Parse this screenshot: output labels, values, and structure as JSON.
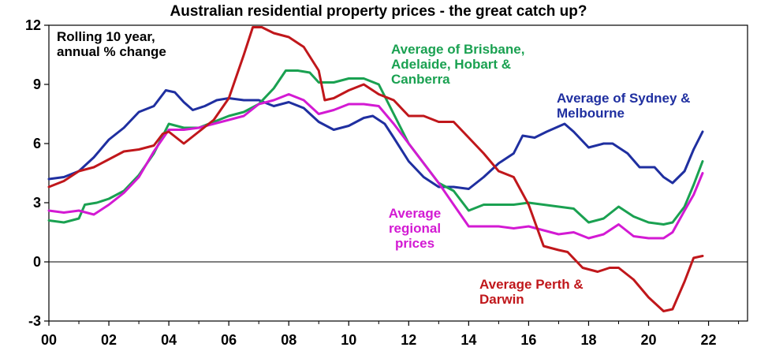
{
  "chart_data": {
    "type": "line",
    "title": "Australian residential property prices - the great catch up?",
    "unit_label": [
      "Rolling 10 year,",
      "annual % change"
    ],
    "xlim": [
      2000,
      2023
    ],
    "ylim": [
      -3,
      12
    ],
    "x_ticks": [
      2000,
      2002,
      2004,
      2006,
      2008,
      2010,
      2012,
      2014,
      2016,
      2018,
      2020,
      2022
    ],
    "x_tick_labels": [
      "00",
      "02",
      "04",
      "06",
      "08",
      "10",
      "12",
      "14",
      "16",
      "18",
      "20",
      "22"
    ],
    "y_ticks": [
      -3,
      0,
      3,
      6,
      9,
      12
    ],
    "y_tick_labels": [
      "-3",
      "0",
      "3",
      "6",
      "9",
      "12"
    ],
    "grid": false,
    "series": [
      {
        "name": "Average of Sydney & Melbourne",
        "label_lines": [
          "Average of Sydney &",
          "Melbourne"
        ],
        "color": "#1f2fa0",
        "points": [
          [
            2000,
            4.2
          ],
          [
            2000.5,
            4.3
          ],
          [
            2001,
            4.6
          ],
          [
            2001.5,
            5.3
          ],
          [
            2002,
            6.2
          ],
          [
            2002.5,
            6.8
          ],
          [
            2003,
            7.6
          ],
          [
            2003.5,
            7.9
          ],
          [
            2003.9,
            8.7
          ],
          [
            2004.2,
            8.6
          ],
          [
            2004.5,
            8.1
          ],
          [
            2004.8,
            7.7
          ],
          [
            2005.2,
            7.9
          ],
          [
            2005.6,
            8.2
          ],
          [
            2006,
            8.3
          ],
          [
            2006.5,
            8.2
          ],
          [
            2007,
            8.2
          ],
          [
            2007.5,
            7.9
          ],
          [
            2008,
            8.1
          ],
          [
            2008.5,
            7.8
          ],
          [
            2009,
            7.1
          ],
          [
            2009.5,
            6.7
          ],
          [
            2010,
            6.9
          ],
          [
            2010.5,
            7.3
          ],
          [
            2010.8,
            7.4
          ],
          [
            2011.2,
            7.0
          ],
          [
            2011.5,
            6.3
          ],
          [
            2012,
            5.1
          ],
          [
            2012.5,
            4.3
          ],
          [
            2013,
            3.8
          ],
          [
            2013.5,
            3.8
          ],
          [
            2014,
            3.7
          ],
          [
            2014.5,
            4.3
          ],
          [
            2015,
            5.0
          ],
          [
            2015.5,
            5.5
          ],
          [
            2015.8,
            6.4
          ],
          [
            2016.2,
            6.3
          ],
          [
            2016.6,
            6.6
          ],
          [
            2017.2,
            7.0
          ],
          [
            2017.5,
            6.6
          ],
          [
            2018,
            5.8
          ],
          [
            2018.5,
            6.0
          ],
          [
            2018.8,
            6.0
          ],
          [
            2019.3,
            5.5
          ],
          [
            2019.7,
            4.8
          ],
          [
            2020.2,
            4.8
          ],
          [
            2020.5,
            4.3
          ],
          [
            2020.8,
            4.0
          ],
          [
            2021.2,
            4.6
          ],
          [
            2021.5,
            5.7
          ],
          [
            2021.8,
            6.6
          ]
        ]
      },
      {
        "name": "Average of Brisbane, Adelaide, Hobart & Canberra",
        "label_lines": [
          "Average of Brisbane,",
          "Adelaide, Hobart &",
          "Canberra"
        ],
        "color": "#1aa151",
        "points": [
          [
            2000,
            2.1
          ],
          [
            2000.5,
            2.0
          ],
          [
            2001,
            2.2
          ],
          [
            2001.2,
            2.9
          ],
          [
            2001.6,
            3.0
          ],
          [
            2002,
            3.2
          ],
          [
            2002.5,
            3.6
          ],
          [
            2003,
            4.4
          ],
          [
            2003.5,
            5.5
          ],
          [
            2004,
            7.0
          ],
          [
            2004.5,
            6.8
          ],
          [
            2005,
            6.8
          ],
          [
            2005.5,
            7.1
          ],
          [
            2006,
            7.4
          ],
          [
            2006.5,
            7.6
          ],
          [
            2007,
            8.0
          ],
          [
            2007.5,
            8.8
          ],
          [
            2007.9,
            9.7
          ],
          [
            2008.3,
            9.7
          ],
          [
            2008.7,
            9.6
          ],
          [
            2009,
            9.1
          ],
          [
            2009.5,
            9.1
          ],
          [
            2010,
            9.3
          ],
          [
            2010.5,
            9.3
          ],
          [
            2011,
            9.0
          ],
          [
            2011.5,
            7.5
          ],
          [
            2012,
            6.0
          ],
          [
            2012.5,
            5.0
          ],
          [
            2013,
            4.0
          ],
          [
            2013.5,
            3.6
          ],
          [
            2014,
            2.6
          ],
          [
            2014.5,
            2.9
          ],
          [
            2015,
            2.9
          ],
          [
            2015.5,
            2.9
          ],
          [
            2016,
            3.0
          ],
          [
            2016.5,
            2.9
          ],
          [
            2017,
            2.8
          ],
          [
            2017.5,
            2.7
          ],
          [
            2018,
            2.0
          ],
          [
            2018.5,
            2.2
          ],
          [
            2019,
            2.8
          ],
          [
            2019.5,
            2.3
          ],
          [
            2020,
            2.0
          ],
          [
            2020.5,
            1.9
          ],
          [
            2020.8,
            2.0
          ],
          [
            2021.2,
            2.8
          ],
          [
            2021.5,
            3.9
          ],
          [
            2021.8,
            5.1
          ]
        ]
      },
      {
        "name": "Average regional prices",
        "label_lines": [
          "Average",
          "regional",
          "prices"
        ],
        "color": "#d31ad3",
        "points": [
          [
            2000,
            2.6
          ],
          [
            2000.5,
            2.5
          ],
          [
            2001,
            2.6
          ],
          [
            2001.5,
            2.4
          ],
          [
            2002,
            2.9
          ],
          [
            2002.5,
            3.5
          ],
          [
            2003,
            4.3
          ],
          [
            2003.5,
            5.6
          ],
          [
            2004,
            6.7
          ],
          [
            2004.5,
            6.7
          ],
          [
            2005,
            6.8
          ],
          [
            2005.5,
            7.0
          ],
          [
            2006,
            7.2
          ],
          [
            2006.5,
            7.4
          ],
          [
            2007,
            8.0
          ],
          [
            2007.5,
            8.2
          ],
          [
            2008,
            8.5
          ],
          [
            2008.5,
            8.2
          ],
          [
            2009,
            7.5
          ],
          [
            2009.5,
            7.7
          ],
          [
            2010,
            8.0
          ],
          [
            2010.5,
            8.0
          ],
          [
            2011,
            7.9
          ],
          [
            2011.5,
            7.0
          ],
          [
            2012,
            6.0
          ],
          [
            2012.5,
            5.0
          ],
          [
            2013,
            4.0
          ],
          [
            2013.5,
            2.9
          ],
          [
            2014,
            1.8
          ],
          [
            2014.5,
            1.8
          ],
          [
            2015,
            1.8
          ],
          [
            2015.5,
            1.7
          ],
          [
            2016,
            1.8
          ],
          [
            2016.5,
            1.6
          ],
          [
            2017,
            1.4
          ],
          [
            2017.5,
            1.5
          ],
          [
            2018,
            1.2
          ],
          [
            2018.5,
            1.4
          ],
          [
            2019,
            1.9
          ],
          [
            2019.5,
            1.3
          ],
          [
            2020,
            1.2
          ],
          [
            2020.5,
            1.2
          ],
          [
            2020.8,
            1.5
          ],
          [
            2021.2,
            2.6
          ],
          [
            2021.5,
            3.4
          ],
          [
            2021.8,
            4.5
          ]
        ]
      },
      {
        "name": "Average Perth & Darwin",
        "label_lines": [
          "Average Perth &",
          "Darwin"
        ],
        "color": "#c0171b",
        "points": [
          [
            2000,
            3.8
          ],
          [
            2000.5,
            4.1
          ],
          [
            2001,
            4.6
          ],
          [
            2001.5,
            4.8
          ],
          [
            2002,
            5.2
          ],
          [
            2002.5,
            5.6
          ],
          [
            2003,
            5.7
          ],
          [
            2003.5,
            5.9
          ],
          [
            2003.8,
            6.5
          ],
          [
            2004,
            6.6
          ],
          [
            2004.5,
            6.0
          ],
          [
            2005,
            6.6
          ],
          [
            2005.5,
            7.2
          ],
          [
            2006,
            8.3
          ],
          [
            2006.5,
            10.5
          ],
          [
            2006.8,
            11.9
          ],
          [
            2007.1,
            11.9
          ],
          [
            2007.5,
            11.6
          ],
          [
            2008,
            11.4
          ],
          [
            2008.5,
            10.9
          ],
          [
            2009,
            9.7
          ],
          [
            2009.2,
            8.2
          ],
          [
            2009.5,
            8.3
          ],
          [
            2010,
            8.7
          ],
          [
            2010.5,
            9.0
          ],
          [
            2011,
            8.5
          ],
          [
            2011.5,
            8.2
          ],
          [
            2012,
            7.4
          ],
          [
            2012.5,
            7.4
          ],
          [
            2013,
            7.1
          ],
          [
            2013.5,
            7.1
          ],
          [
            2014,
            6.3
          ],
          [
            2014.5,
            5.5
          ],
          [
            2015,
            4.6
          ],
          [
            2015.5,
            4.3
          ],
          [
            2016,
            2.9
          ],
          [
            2016.5,
            0.8
          ],
          [
            2017,
            0.6
          ],
          [
            2017.3,
            0.5
          ],
          [
            2017.8,
            -0.3
          ],
          [
            2018.3,
            -0.5
          ],
          [
            2018.7,
            -0.3
          ],
          [
            2019,
            -0.3
          ],
          [
            2019.5,
            -0.9
          ],
          [
            2020,
            -1.8
          ],
          [
            2020.5,
            -2.5
          ],
          [
            2020.8,
            -2.4
          ],
          [
            2021.2,
            -1.0
          ],
          [
            2021.5,
            0.2
          ],
          [
            2021.8,
            0.3
          ]
        ]
      }
    ],
    "annotation": "Rolling 10 year, annual % change"
  }
}
